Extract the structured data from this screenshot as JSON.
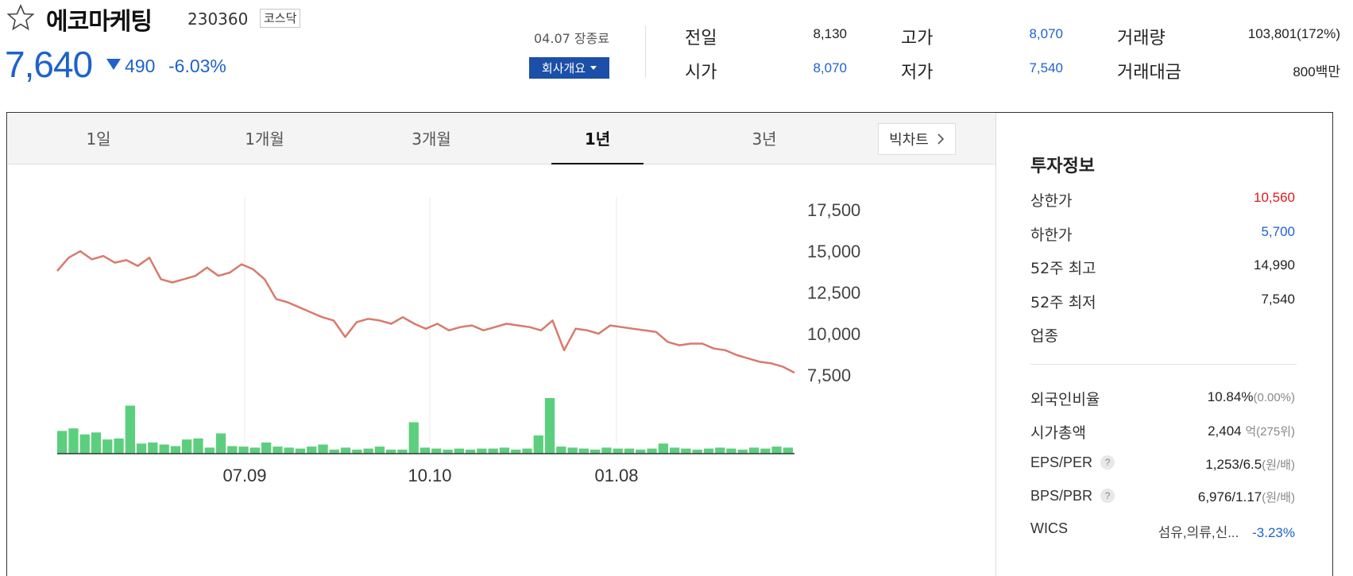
{
  "stock": {
    "name": "에코마케팅",
    "code": "230360",
    "market": "코스닥",
    "price": "7,640",
    "change": "490",
    "change_rate": "-6.03%"
  },
  "session": {
    "date_status": "04.07 장종료",
    "company_button": "회사개요"
  },
  "quote": {
    "prev_close_label": "전일",
    "prev_close": "8,130",
    "open_label": "시가",
    "open": "8,070",
    "high_label": "고가",
    "high": "8,070",
    "low_label": "저가",
    "low": "7,540",
    "volume_label": "거래량",
    "volume": "103,801(172%)",
    "amount_label": "거래대금",
    "amount": "800백만"
  },
  "tabs": [
    {
      "label": "1일"
    },
    {
      "label": "1개월"
    },
    {
      "label": "3개월"
    },
    {
      "label": "1년"
    },
    {
      "label": "3년"
    }
  ],
  "active_tab": "1년",
  "big_chart_label": "빅차트",
  "colors": {
    "down": "#1e62cc",
    "up": "#e0191f",
    "line": "#d97a6c",
    "volume": "#5ccf7e"
  },
  "chart_data": {
    "type": "line",
    "x_ticks": [
      "07.09",
      "10.10",
      "01.08"
    ],
    "y_ticks": [
      "17,500",
      "15,000",
      "12,500",
      "10,000",
      "7,500"
    ],
    "ylim": [
      7500,
      17500
    ],
    "series": [
      {
        "values": [
          13800,
          14600,
          14990,
          14500,
          14700,
          14300,
          14450,
          14100,
          14600,
          13300,
          13100,
          13300,
          13500,
          14000,
          13500,
          13700,
          14200,
          13900,
          13300,
          12100,
          11900,
          11600,
          11300,
          11000,
          10800,
          9800,
          10700,
          10900,
          10800,
          10600,
          11000,
          10600,
          10300,
          10600,
          10200,
          10400,
          10500,
          10200,
          10400,
          10600,
          10500,
          10400,
          10200,
          10800,
          9000,
          10300,
          10200,
          10000,
          10500,
          10400,
          10300,
          10200,
          10100,
          9500,
          9300,
          9400,
          9400,
          9100,
          9000,
          8700,
          8500,
          8300,
          8200,
          8000,
          7640
        ]
      }
    ],
    "volume": [
      45,
      50,
      38,
      42,
      28,
      30,
      95,
      20,
      22,
      18,
      15,
      28,
      30,
      12,
      40,
      15,
      14,
      12,
      22,
      14,
      12,
      10,
      14,
      18,
      8,
      12,
      8,
      10,
      14,
      8,
      8,
      62,
      12,
      10,
      8,
      10,
      8,
      10,
      10,
      12,
      8,
      10,
      36,
      110,
      14,
      12,
      10,
      8,
      12,
      10,
      10,
      8,
      10,
      20,
      12,
      10,
      8,
      10,
      12,
      10,
      8,
      12,
      10,
      14,
      12
    ]
  },
  "invest": {
    "title": "투자정보",
    "upper_limit_label": "상한가",
    "upper_limit": "10,560",
    "lower_limit_label": "하한가",
    "lower_limit": "5,700",
    "high52_label": "52주 최고",
    "high52": "14,990",
    "low52_label": "52주 최저",
    "low52": "7,540",
    "industry_label": "업종",
    "foreign_label": "외국인비율",
    "foreign": "10.84%",
    "foreign_change": "(0.00%)",
    "mktcap_label": "시가총액",
    "mktcap": "2,404",
    "mktcap_unit": "억",
    "mktcap_rank": "(275위)",
    "eps_per_label": "EPS/PER",
    "eps_per": "1,253/6.5",
    "eps_per_unit": "(원/배)",
    "bps_pbr_label": "BPS/PBR",
    "bps_pbr": "6,976/1.17",
    "bps_pbr_unit": "(원/배)",
    "wics_label": "WICS",
    "wics_sector": "섬유,의류,신...",
    "wics_change": "-3.23%"
  }
}
